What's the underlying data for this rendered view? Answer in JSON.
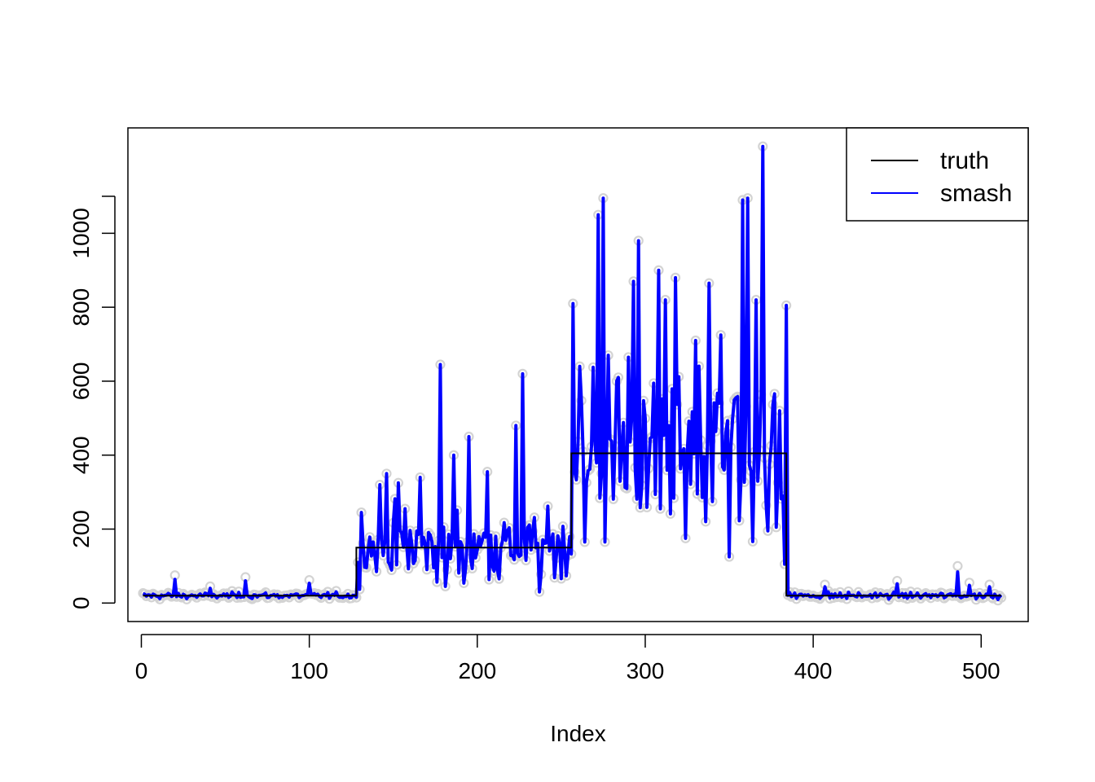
{
  "chart_data": {
    "type": "line",
    "title": "",
    "xlabel": "Index",
    "ylabel": "",
    "xlim": [
      -8,
      528
    ],
    "ylim": [
      -50,
      1285
    ],
    "x_ticks": [
      0,
      100,
      200,
      300,
      400,
      500
    ],
    "y_ticks": [
      0,
      200,
      400,
      600,
      800,
      1000
    ],
    "x_tick_labels": [
      "0",
      "100",
      "200",
      "300",
      "400",
      "500"
    ],
    "y_tick_labels": [
      "0",
      "200",
      "400",
      "600",
      "800",
      "1000"
    ],
    "grid": false,
    "legend": {
      "position": "top-right",
      "entries": [
        "truth",
        "smash"
      ]
    },
    "n_points": 512,
    "colors": {
      "truth": "#000000",
      "smash": "#0000ff",
      "observations": "#d3d3d3"
    },
    "truth": {
      "name": "truth",
      "segments": [
        {
          "x_start": 1,
          "x_end": 128,
          "value": 20
        },
        {
          "x_start": 129,
          "x_end": 256,
          "value": 150
        },
        {
          "x_start": 257,
          "x_end": 384,
          "value": 405
        },
        {
          "x_start": 385,
          "x_end": 512,
          "value": 20
        }
      ]
    },
    "highlights": [
      {
        "x": 20,
        "y": 75
      },
      {
        "x": 41,
        "y": 45
      },
      {
        "x": 62,
        "y": 70
      },
      {
        "x": 100,
        "y": 62
      },
      {
        "x": 129,
        "y": 110
      },
      {
        "x": 131,
        "y": 245
      },
      {
        "x": 142,
        "y": 320
      },
      {
        "x": 146,
        "y": 350
      },
      {
        "x": 153,
        "y": 325
      },
      {
        "x": 157,
        "y": 255
      },
      {
        "x": 166,
        "y": 340
      },
      {
        "x": 178,
        "y": 645
      },
      {
        "x": 181,
        "y": 45
      },
      {
        "x": 186,
        "y": 400
      },
      {
        "x": 195,
        "y": 450
      },
      {
        "x": 206,
        "y": 355
      },
      {
        "x": 223,
        "y": 480
      },
      {
        "x": 227,
        "y": 620
      },
      {
        "x": 237,
        "y": 30
      },
      {
        "x": 257,
        "y": 810
      },
      {
        "x": 261,
        "y": 640
      },
      {
        "x": 264,
        "y": 165
      },
      {
        "x": 272,
        "y": 1050
      },
      {
        "x": 275,
        "y": 1095
      },
      {
        "x": 278,
        "y": 670
      },
      {
        "x": 283,
        "y": 600
      },
      {
        "x": 290,
        "y": 665
      },
      {
        "x": 293,
        "y": 870
      },
      {
        "x": 296,
        "y": 980
      },
      {
        "x": 308,
        "y": 900
      },
      {
        "x": 312,
        "y": 820
      },
      {
        "x": 318,
        "y": 880
      },
      {
        "x": 324,
        "y": 175
      },
      {
        "x": 330,
        "y": 710
      },
      {
        "x": 338,
        "y": 865
      },
      {
        "x": 345,
        "y": 725
      },
      {
        "x": 350,
        "y": 125
      },
      {
        "x": 354,
        "y": 555
      },
      {
        "x": 358,
        "y": 1090
      },
      {
        "x": 361,
        "y": 1095
      },
      {
        "x": 366,
        "y": 820
      },
      {
        "x": 370,
        "y": 1235
      },
      {
        "x": 373,
        "y": 195
      },
      {
        "x": 380,
        "y": 520
      },
      {
        "x": 383,
        "y": 105
      },
      {
        "x": 384,
        "y": 805
      },
      {
        "x": 386,
        "y": 30
      },
      {
        "x": 407,
        "y": 50
      },
      {
        "x": 450,
        "y": 60
      },
      {
        "x": 486,
        "y": 100
      },
      {
        "x": 493,
        "y": 55
      },
      {
        "x": 505,
        "y": 50
      }
    ],
    "smash": {
      "name": "smash",
      "description_free_values": "512 noisy values generated in script from truth segments plus highlights"
    }
  },
  "legend": {
    "truth_label": "truth",
    "smash_label": "smash"
  },
  "axes": {
    "xlabel": "Index"
  }
}
